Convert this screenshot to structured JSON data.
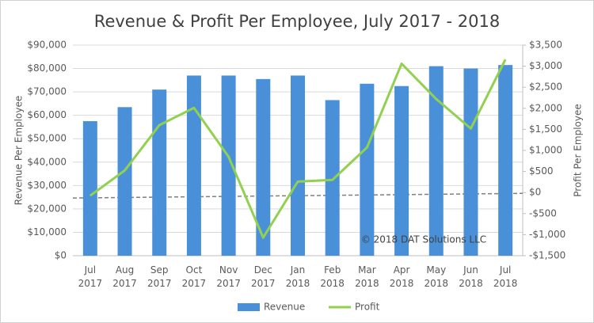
{
  "chart_data": {
    "type": "bar-line",
    "title": "Revenue & Profit Per Employee, July 2017 - 2018",
    "y_label": "Revenue Per Employee",
    "y2_label": "Profit Per Employee",
    "annotation": "© 2018 DAT Solutions LLC",
    "categories": [
      "Jul 2017",
      "Aug 2017",
      "Sep 2017",
      "Oct 2017",
      "Nov 2017",
      "Dec 2017",
      "Jan 2018",
      "Feb 2018",
      "Mar 2018",
      "Apr 2018",
      "May 2018",
      "Jun 2018",
      "Jul 2018"
    ],
    "series": [
      {
        "name": "Revenue",
        "type": "bar",
        "color": "#4a90d9",
        "values": [
          57500,
          63500,
          71000,
          77000,
          77000,
          75500,
          77000,
          66500,
          73500,
          72500,
          81000,
          80000,
          81500
        ]
      },
      {
        "name": "Profit",
        "type": "line",
        "axis": "y2",
        "color": "#92d050",
        "values": [
          -75,
          525,
          1600,
          2010,
          850,
          -1070,
          260,
          300,
          1070,
          3060,
          2220,
          1520,
          3160
        ]
      }
    ],
    "reference_line": {
      "axis": "y2",
      "color": "#7f7f7f",
      "values": [
        -130,
        -20
      ]
    },
    "ylim": [
      0,
      90000
    ],
    "yticks": [
      {
        "value": 0,
        "label": "$0"
      },
      {
        "value": 10000,
        "label": "$10,000"
      },
      {
        "value": 20000,
        "label": "$20,000"
      },
      {
        "value": 30000,
        "label": "$30,000"
      },
      {
        "value": 40000,
        "label": "$40,000"
      },
      {
        "value": 50000,
        "label": "$50,000"
      },
      {
        "value": 60000,
        "label": "$60,000"
      },
      {
        "value": 70000,
        "label": "$70,000"
      },
      {
        "value": 80000,
        "label": "$80,000"
      },
      {
        "value": 90000,
        "label": "$90,000"
      }
    ],
    "y2lim": [
      -1500,
      3500
    ],
    "y2ticks": [
      {
        "value": -1500,
        "label": "-$1,500"
      },
      {
        "value": -1000,
        "label": "-$1,000"
      },
      {
        "value": -500,
        "label": "-$500"
      },
      {
        "value": 0,
        "label": "$0"
      },
      {
        "value": 500,
        "label": "$500"
      },
      {
        "value": 1000,
        "label": "$1,000"
      },
      {
        "value": 1500,
        "label": "$1,500"
      },
      {
        "value": 2000,
        "label": "$2,000"
      },
      {
        "value": 2500,
        "label": "$2,500"
      },
      {
        "value": 3000,
        "label": "$3,000"
      },
      {
        "value": 3500,
        "label": "$3,500"
      }
    ],
    "grid": true,
    "legend": "bottom"
  }
}
